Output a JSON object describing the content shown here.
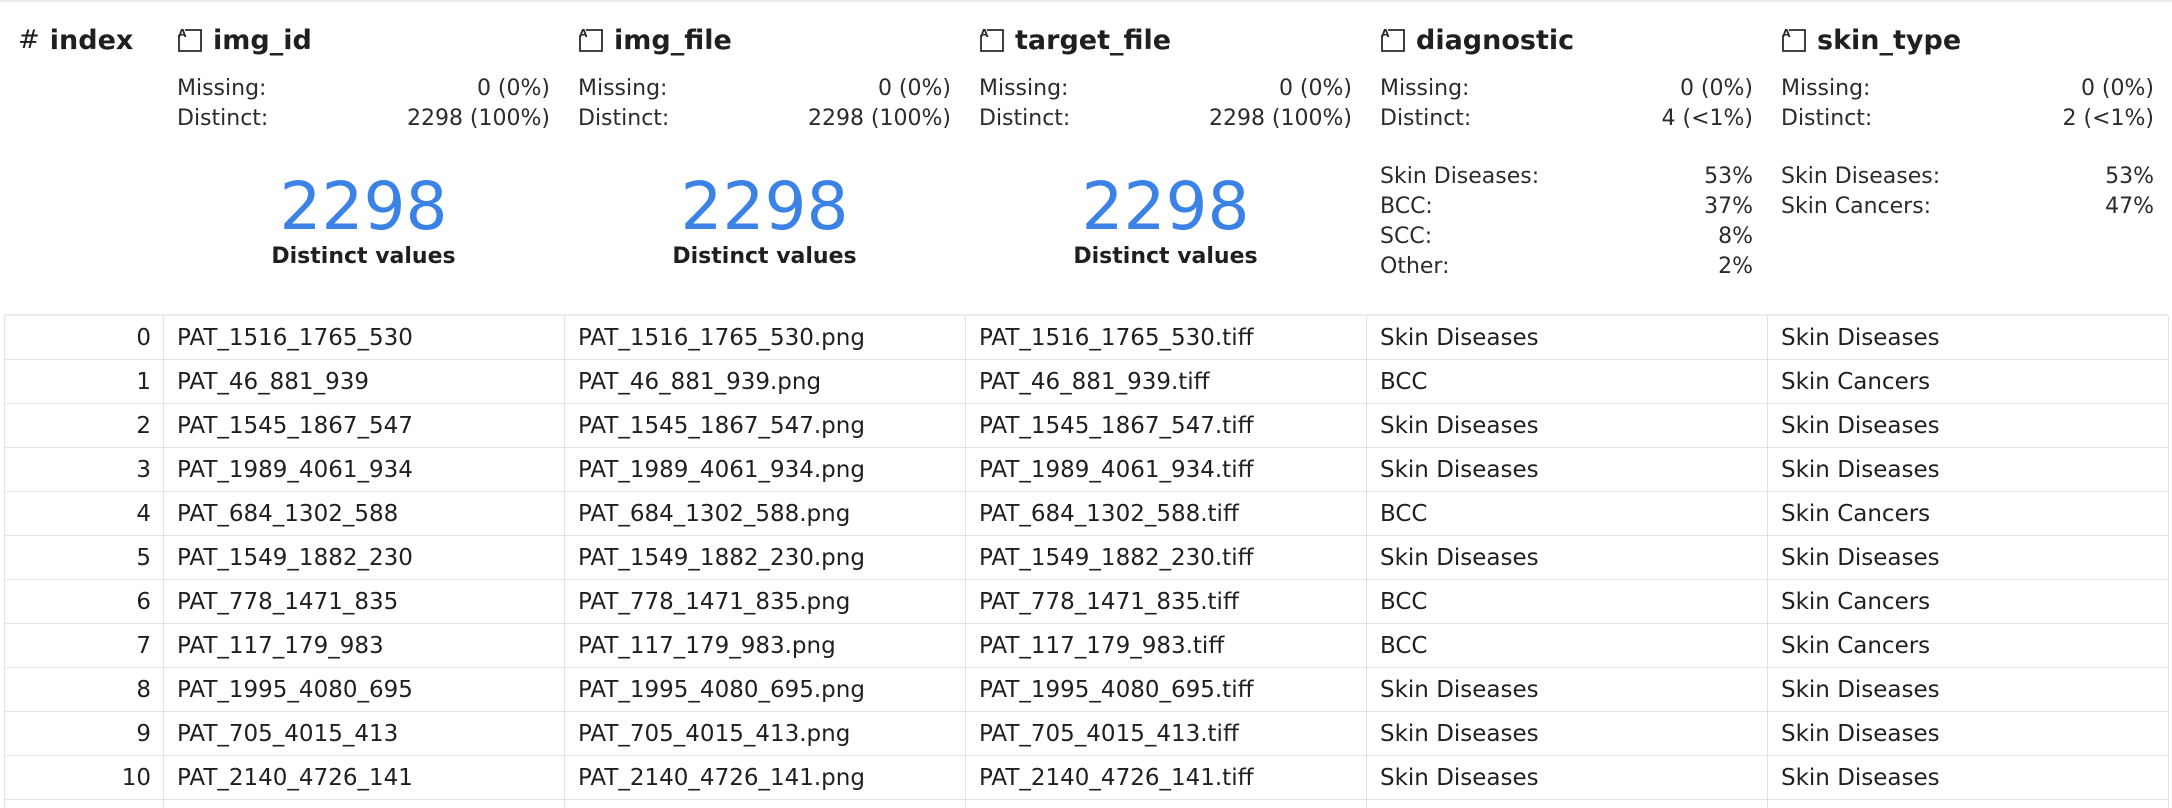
{
  "columns": [
    {
      "key": "index",
      "title": "index",
      "type_icon": "hash-icon"
    },
    {
      "key": "img_id",
      "title": "img_id",
      "type_icon": "text-type-icon",
      "stats": {
        "missing_label": "Missing:",
        "missing": "0 (0%)",
        "distinct_label": "Distinct:",
        "distinct": "2298 (100%)"
      },
      "summary": {
        "big_value": "2298",
        "caption": "Distinct values"
      }
    },
    {
      "key": "img_file",
      "title": "img_file",
      "type_icon": "text-type-icon",
      "stats": {
        "missing_label": "Missing:",
        "missing": "0 (0%)",
        "distinct_label": "Distinct:",
        "distinct": "2298 (100%)"
      },
      "summary": {
        "big_value": "2298",
        "caption": "Distinct values"
      }
    },
    {
      "key": "target_file",
      "title": "target_file",
      "type_icon": "text-type-icon",
      "stats": {
        "missing_label": "Missing:",
        "missing": "0 (0%)",
        "distinct_label": "Distinct:",
        "distinct": "2298 (100%)"
      },
      "summary": {
        "big_value": "2298",
        "caption": "Distinct values"
      }
    },
    {
      "key": "diagnostic",
      "title": "diagnostic",
      "type_icon": "text-type-icon",
      "stats": {
        "missing_label": "Missing:",
        "missing": "0 (0%)",
        "distinct_label": "Distinct:",
        "distinct": "4 (<1%)"
      },
      "frequencies": [
        {
          "label": "Skin Diseases:",
          "pct": "53%"
        },
        {
          "label": "BCC:",
          "pct": "37%"
        },
        {
          "label": "SCC:",
          "pct": "8%"
        },
        {
          "label": "Other:",
          "pct": "2%"
        }
      ]
    },
    {
      "key": "skin_type",
      "title": "skin_type",
      "type_icon": "text-type-icon",
      "stats": {
        "missing_label": "Missing:",
        "missing": "0 (0%)",
        "distinct_label": "Distinct:",
        "distinct": "2 (<1%)"
      },
      "frequencies": [
        {
          "label": "Skin Diseases:",
          "pct": "53%"
        },
        {
          "label": "Skin Cancers:",
          "pct": "47%"
        }
      ]
    }
  ],
  "rows": [
    [
      "0",
      "PAT_1516_1765_530",
      "PAT_1516_1765_530.png",
      "PAT_1516_1765_530.tiff",
      "Skin Diseases",
      "Skin Diseases"
    ],
    [
      "1",
      "PAT_46_881_939",
      "PAT_46_881_939.png",
      "PAT_46_881_939.tiff",
      "BCC",
      "Skin Cancers"
    ],
    [
      "2",
      "PAT_1545_1867_547",
      "PAT_1545_1867_547.png",
      "PAT_1545_1867_547.tiff",
      "Skin Diseases",
      "Skin Diseases"
    ],
    [
      "3",
      "PAT_1989_4061_934",
      "PAT_1989_4061_934.png",
      "PAT_1989_4061_934.tiff",
      "Skin Diseases",
      "Skin Diseases"
    ],
    [
      "4",
      "PAT_684_1302_588",
      "PAT_684_1302_588.png",
      "PAT_684_1302_588.tiff",
      "BCC",
      "Skin Cancers"
    ],
    [
      "5",
      "PAT_1549_1882_230",
      "PAT_1549_1882_230.png",
      "PAT_1549_1882_230.tiff",
      "Skin Diseases",
      "Skin Diseases"
    ],
    [
      "6",
      "PAT_778_1471_835",
      "PAT_778_1471_835.png",
      "PAT_778_1471_835.tiff",
      "BCC",
      "Skin Cancers"
    ],
    [
      "7",
      "PAT_117_179_983",
      "PAT_117_179_983.png",
      "PAT_117_179_983.tiff",
      "BCC",
      "Skin Cancers"
    ],
    [
      "8",
      "PAT_1995_4080_695",
      "PAT_1995_4080_695.png",
      "PAT_1995_4080_695.tiff",
      "Skin Diseases",
      "Skin Diseases"
    ],
    [
      "9",
      "PAT_705_4015_413",
      "PAT_705_4015_413.png",
      "PAT_705_4015_413.tiff",
      "Skin Diseases",
      "Skin Diseases"
    ],
    [
      "10",
      "PAT_2140_4726_141",
      "PAT_2140_4726_141.png",
      "PAT_2140_4726_141.tiff",
      "Skin Diseases",
      "Skin Diseases"
    ]
  ],
  "colors": {
    "accent": "#3b82e6",
    "grid_line": "#e4e4e4"
  }
}
